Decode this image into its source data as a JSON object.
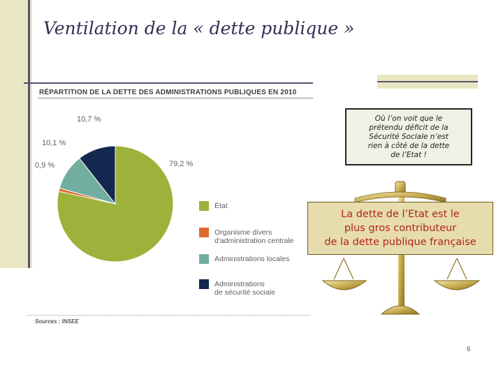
{
  "slide": {
    "title": "Ventilation de la « dette publique »",
    "page_number": "6"
  },
  "colors": {
    "accent_bar": "#e9e7c3",
    "rule": "#5a4e72",
    "title_text": "#3a2c54",
    "highlight_text": "#b02518"
  },
  "chart_data": {
    "type": "pie",
    "title": "RÉPARTITION DE LA DETTE DES ADMINISTRATIONS PUBLIQUES EN 2010",
    "source": "Sources : INSEE",
    "series": [
      {
        "name": "État",
        "value": 79.2,
        "label": "79,2 %",
        "color": "#9cb23a"
      },
      {
        "name": "Organisme divers\nd'administration centrale",
        "value": 0.9,
        "label": "0,9 %",
        "color": "#e06a2e"
      },
      {
        "name": "Administrations locales",
        "value": 10.1,
        "label": "10,1 %",
        "color": "#72aea0"
      },
      {
        "name": "Administrations\nde sécurité sociale",
        "value": 10.7,
        "label": "10,7 %",
        "color": "#14284f"
      }
    ]
  },
  "callout": {
    "text": "Où l’on voit que le\nprétendu déficit de la\nSécurité Sociale n’est\nrien à côté de la dette\nde l’Etat !"
  },
  "scale_caption": {
    "text": "La dette de l’Etat est le\nplus gros contributeur\nde la dette publique française"
  }
}
